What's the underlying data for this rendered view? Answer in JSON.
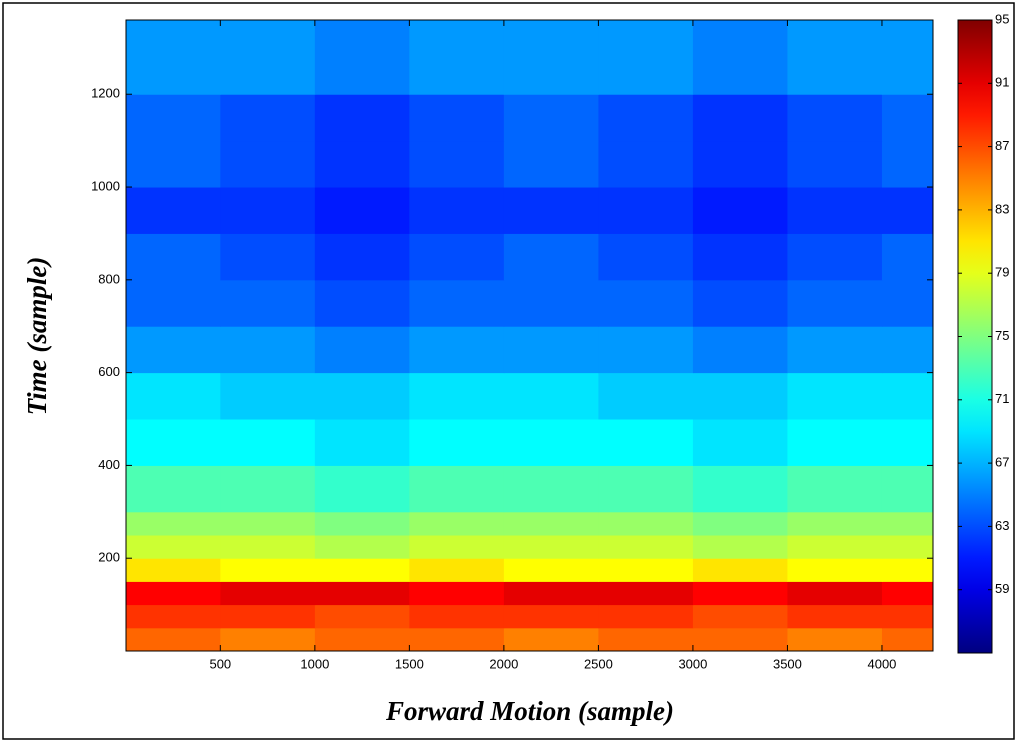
{
  "chart_data": {
    "type": "heatmap",
    "xlabel": "Forward Motion  (sample)",
    "ylabel": "Time  (sample)",
    "x_edges": [
      1,
      500,
      1000,
      1500,
      2000,
      2500,
      3000,
      3500,
      4000,
      4270
    ],
    "y_edges": [
      0,
      50,
      100,
      150,
      200,
      250,
      300,
      400,
      500,
      600,
      700,
      800,
      900,
      1000,
      1100,
      1200,
      1360
    ],
    "values": [
      [
        86,
        85,
        86,
        86,
        85,
        86,
        86,
        85,
        86
      ],
      [
        88,
        88,
        87,
        88,
        88,
        88,
        87,
        88,
        88
      ],
      [
        90,
        91,
        91,
        90,
        91,
        91,
        90,
        91,
        90
      ],
      [
        81,
        80,
        80,
        81,
        80,
        80,
        81,
        80,
        80
      ],
      [
        78,
        78,
        77,
        78,
        78,
        78,
        77,
        78,
        78
      ],
      [
        76,
        76,
        75,
        76,
        76,
        76,
        75,
        76,
        76
      ],
      [
        73,
        73,
        72,
        73,
        73,
        73,
        72,
        73,
        73
      ],
      [
        70,
        70,
        69,
        70,
        70,
        70,
        69,
        70,
        70
      ],
      [
        69,
        68,
        68,
        69,
        69,
        68,
        68,
        69,
        69
      ],
      [
        66,
        66,
        65,
        66,
        66,
        66,
        65,
        66,
        66
      ],
      [
        64,
        64,
        63,
        64,
        64,
        64,
        63,
        64,
        64
      ],
      [
        64,
        63,
        62,
        63,
        64,
        63,
        62,
        63,
        64
      ],
      [
        62,
        62,
        61,
        62,
        62,
        62,
        61,
        62,
        62
      ],
      [
        64,
        63,
        62,
        63,
        64,
        63,
        62,
        63,
        64
      ],
      [
        64,
        63,
        62,
        63,
        64,
        63,
        62,
        63,
        64
      ],
      [
        66,
        66,
        65,
        66,
        66,
        66,
        65,
        66,
        66
      ]
    ],
    "xlim": [
      1,
      4270
    ],
    "ylim": [
      0,
      1360
    ],
    "xticks": [
      500,
      1000,
      1500,
      2000,
      2500,
      3000,
      3500,
      4000
    ],
    "yticks": [
      200,
      400,
      600,
      800,
      1000,
      1200
    ],
    "colormap": "jet",
    "clim": [
      55,
      95
    ],
    "cticks": [
      59,
      63,
      67,
      71,
      75,
      79,
      83,
      87,
      91,
      95
    ]
  }
}
